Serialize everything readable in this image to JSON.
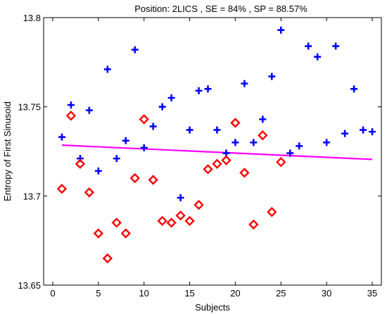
{
  "chart_data": {
    "type": "scatter",
    "title": "Position: 2LICS , SE = 84% , SP = 88.57%",
    "xlabel": "Subjects",
    "ylabel": "Entropy of First Sinusoid",
    "xlim": [
      -1,
      36
    ],
    "ylim": [
      13.65,
      13.8
    ],
    "xticks": [
      0,
      5,
      10,
      15,
      20,
      25,
      30,
      35
    ],
    "yticks": [
      13.65,
      13.7,
      13.75,
      13.8
    ],
    "ytick_labels": [
      "13.65",
      "13.7",
      "13.75",
      "13.8"
    ],
    "grid": false,
    "colors": {
      "series_plus": "#0000ff",
      "series_diamond": "#ff0000",
      "trend": "#ff00ff"
    },
    "series": [
      {
        "marker": "plus",
        "color": "#0000ff",
        "points": [
          [
            1,
            13.733
          ],
          [
            2,
            13.751
          ],
          [
            3,
            13.721
          ],
          [
            4,
            13.748
          ],
          [
            5,
            13.714
          ],
          [
            6,
            13.771
          ],
          [
            7,
            13.721
          ],
          [
            8,
            13.731
          ],
          [
            9,
            13.782
          ],
          [
            10,
            13.727
          ],
          [
            11,
            13.739
          ],
          [
            12,
            13.75
          ],
          [
            13,
            13.755
          ],
          [
            14,
            13.699
          ],
          [
            15,
            13.737
          ],
          [
            16,
            13.759
          ],
          [
            17,
            13.76
          ],
          [
            18,
            13.737
          ],
          [
            19,
            13.724
          ],
          [
            20,
            13.73
          ],
          [
            21,
            13.763
          ],
          [
            22,
            13.73
          ],
          [
            23,
            13.743
          ],
          [
            24,
            13.767
          ],
          [
            25,
            13.793
          ],
          [
            26,
            13.724
          ],
          [
            27,
            13.728
          ],
          [
            28,
            13.784
          ],
          [
            29,
            13.778
          ],
          [
            30,
            13.73
          ],
          [
            31,
            13.784
          ],
          [
            32,
            13.735
          ],
          [
            33,
            13.76
          ],
          [
            34,
            13.737
          ],
          [
            35,
            13.736
          ]
        ]
      },
      {
        "marker": "diamond",
        "color": "#ff0000",
        "points": [
          [
            1,
            13.704
          ],
          [
            2,
            13.745
          ],
          [
            3,
            13.718
          ],
          [
            4,
            13.702
          ],
          [
            5,
            13.679
          ],
          [
            6,
            13.665
          ],
          [
            7,
            13.685
          ],
          [
            8,
            13.679
          ],
          [
            9,
            13.71
          ],
          [
            10,
            13.743
          ],
          [
            11,
            13.709
          ],
          [
            12,
            13.686
          ],
          [
            13,
            13.685
          ],
          [
            14,
            13.689
          ],
          [
            15,
            13.686
          ],
          [
            16,
            13.695
          ],
          [
            17,
            13.715
          ],
          [
            18,
            13.718
          ],
          [
            19,
            13.72
          ],
          [
            20,
            13.741
          ],
          [
            21,
            13.713
          ],
          [
            22,
            13.684
          ],
          [
            23,
            13.734
          ],
          [
            24,
            13.691
          ],
          [
            25,
            13.719
          ]
        ]
      },
      {
        "marker": "line",
        "color": "#ff00ff",
        "points": [
          [
            1,
            13.7285
          ],
          [
            35,
            13.7205
          ]
        ]
      }
    ]
  }
}
